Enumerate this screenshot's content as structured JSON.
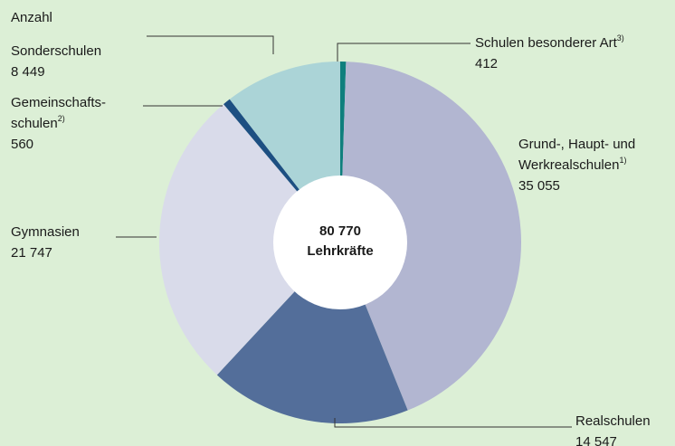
{
  "chart_data": {
    "type": "pie",
    "title": "Anzahl",
    "categories": [
      [
        "Schulen besonderer Art"
      ],
      [
        "Grund-, Haupt- und",
        "Werkrealschulen"
      ],
      [
        "Realschulen"
      ],
      [
        "Gymnasien"
      ],
      [
        "Gemeinschafts-",
        "schulen"
      ],
      [
        "Sonderschulen"
      ]
    ],
    "footnotes": [
      "3)",
      "1)",
      null,
      null,
      "2)",
      null
    ],
    "values": [
      412,
      35055,
      14547,
      21747,
      560,
      8449
    ],
    "value_labels": [
      "412",
      "35 055",
      "14 547",
      "21 747",
      "560",
      "8 449"
    ],
    "colors": [
      "#0f7f7d",
      "#b2b6d1",
      "#536e9a",
      "#d9dbea",
      "#1d4f82",
      "#abd4d7"
    ],
    "total": 80770,
    "total_label": "80 770",
    "center_label": "Lehrkräfte"
  }
}
